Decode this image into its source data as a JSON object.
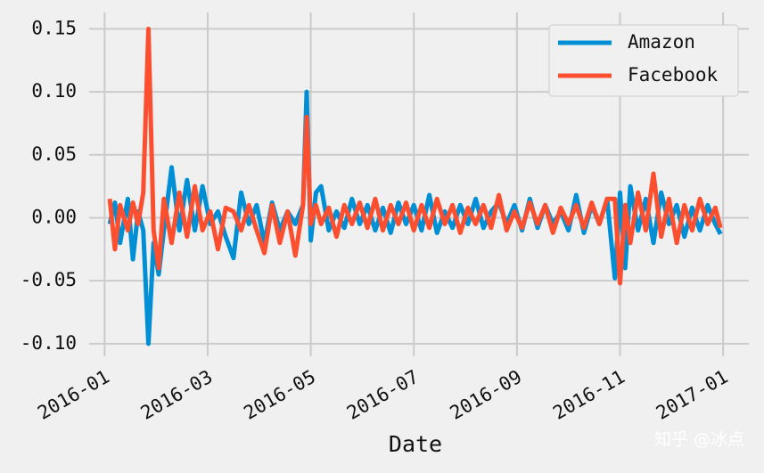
{
  "chart_data": {
    "type": "line",
    "x_label": "Date",
    "watermark": "知乎 @冰点",
    "x": [
      0.1,
      0.2,
      0.3,
      0.45,
      0.55,
      0.65,
      0.75,
      0.85,
      0.95,
      1.05,
      1.15,
      1.3,
      1.45,
      1.6,
      1.75,
      1.9,
      2.05,
      2.2,
      2.35,
      2.5,
      2.65,
      2.8,
      2.95,
      3.1,
      3.25,
      3.4,
      3.55,
      3.7,
      3.85,
      3.92,
      4.0,
      4.1,
      4.2,
      4.35,
      4.5,
      4.65,
      4.8,
      4.95,
      5.1,
      5.25,
      5.4,
      5.55,
      5.7,
      5.85,
      6.0,
      6.15,
      6.3,
      6.45,
      6.6,
      6.75,
      6.9,
      7.05,
      7.2,
      7.35,
      7.5,
      7.65,
      7.8,
      7.95,
      8.1,
      8.25,
      8.4,
      8.55,
      8.7,
      8.85,
      9.0,
      9.15,
      9.3,
      9.45,
      9.6,
      9.75,
      9.9,
      10.0,
      10.1,
      10.2,
      10.35,
      10.5,
      10.65,
      10.8,
      10.95,
      11.1,
      11.25,
      11.4,
      11.55,
      11.7,
      11.85,
      11.95
    ],
    "series": [
      {
        "name": "Amazon",
        "color": "#008fd5",
        "values": [
          -0.005,
          0.012,
          -0.02,
          0.015,
          -0.033,
          0.005,
          -0.01,
          -0.1,
          -0.02,
          -0.045,
          -0.01,
          0.04,
          -0.01,
          0.03,
          -0.01,
          0.025,
          -0.005,
          0.005,
          -0.015,
          -0.032,
          0.02,
          -0.005,
          0.01,
          -0.02,
          0.012,
          -0.01,
          0.005,
          -0.005,
          0.01,
          0.1,
          -0.018,
          0.02,
          0.025,
          -0.01,
          0.005,
          -0.008,
          0.015,
          -0.005,
          0.01,
          -0.01,
          0.008,
          -0.012,
          0.012,
          -0.005,
          0.01,
          -0.01,
          0.018,
          -0.012,
          0.005,
          -0.008,
          0.01,
          -0.005,
          0.015,
          -0.008,
          0.005,
          0.012,
          -0.005,
          0.01,
          -0.01,
          0.015,
          -0.008,
          0.01,
          -0.005,
          0.005,
          -0.01,
          0.018,
          -0.012,
          0.01,
          -0.005,
          0.015,
          -0.048,
          0.02,
          -0.04,
          0.025,
          -0.01,
          0.015,
          -0.02,
          0.02,
          -0.005,
          0.01,
          -0.015,
          0.008,
          -0.01,
          0.01,
          -0.005,
          -0.013
        ]
      },
      {
        "name": "Facebook",
        "color": "#fc4f30",
        "values": [
          0.015,
          -0.025,
          0.01,
          -0.01,
          0.012,
          -0.005,
          0.02,
          0.15,
          -0.01,
          -0.04,
          0.015,
          -0.02,
          0.02,
          -0.015,
          0.025,
          -0.01,
          0.005,
          -0.025,
          0.008,
          0.005,
          -0.01,
          0.01,
          -0.01,
          -0.028,
          0.01,
          -0.02,
          0.005,
          -0.03,
          0.01,
          0.08,
          -0.005,
          0.01,
          -0.005,
          0.008,
          -0.015,
          0.01,
          -0.005,
          0.012,
          -0.008,
          0.015,
          -0.01,
          0.01,
          -0.005,
          0.012,
          -0.01,
          0.01,
          -0.008,
          0.015,
          -0.005,
          0.01,
          -0.012,
          0.008,
          -0.005,
          0.01,
          -0.008,
          0.018,
          -0.01,
          0.005,
          -0.008,
          0.012,
          -0.005,
          0.01,
          -0.012,
          0.008,
          -0.005,
          0.01,
          -0.008,
          0.012,
          -0.005,
          0.015,
          0.015,
          -0.052,
          0.01,
          -0.02,
          0.02,
          -0.01,
          0.035,
          -0.015,
          0.015,
          -0.02,
          0.01,
          -0.01,
          0.015,
          -0.005,
          0.008,
          -0.008
        ]
      }
    ],
    "xlim": [
      -0.3,
      12.5
    ],
    "xticks": [
      {
        "value": 0,
        "label": "2016-01"
      },
      {
        "value": 2,
        "label": "2016-03"
      },
      {
        "value": 4,
        "label": "2016-05"
      },
      {
        "value": 6,
        "label": "2016-07"
      },
      {
        "value": 8,
        "label": "2016-09"
      },
      {
        "value": 10,
        "label": "2016-11"
      },
      {
        "value": 12,
        "label": "2017-01"
      }
    ],
    "ylim": [
      -0.11,
      0.163
    ],
    "yticks": [
      {
        "value": -0.1,
        "label": "-0.10"
      },
      -0.05,
      {
        "value": 0,
        "label": "0.00"
      },
      0.05,
      {
        "value": 0.1,
        "label": "0.10"
      },
      0.15
    ],
    "grid": true,
    "legend": "upper right"
  }
}
